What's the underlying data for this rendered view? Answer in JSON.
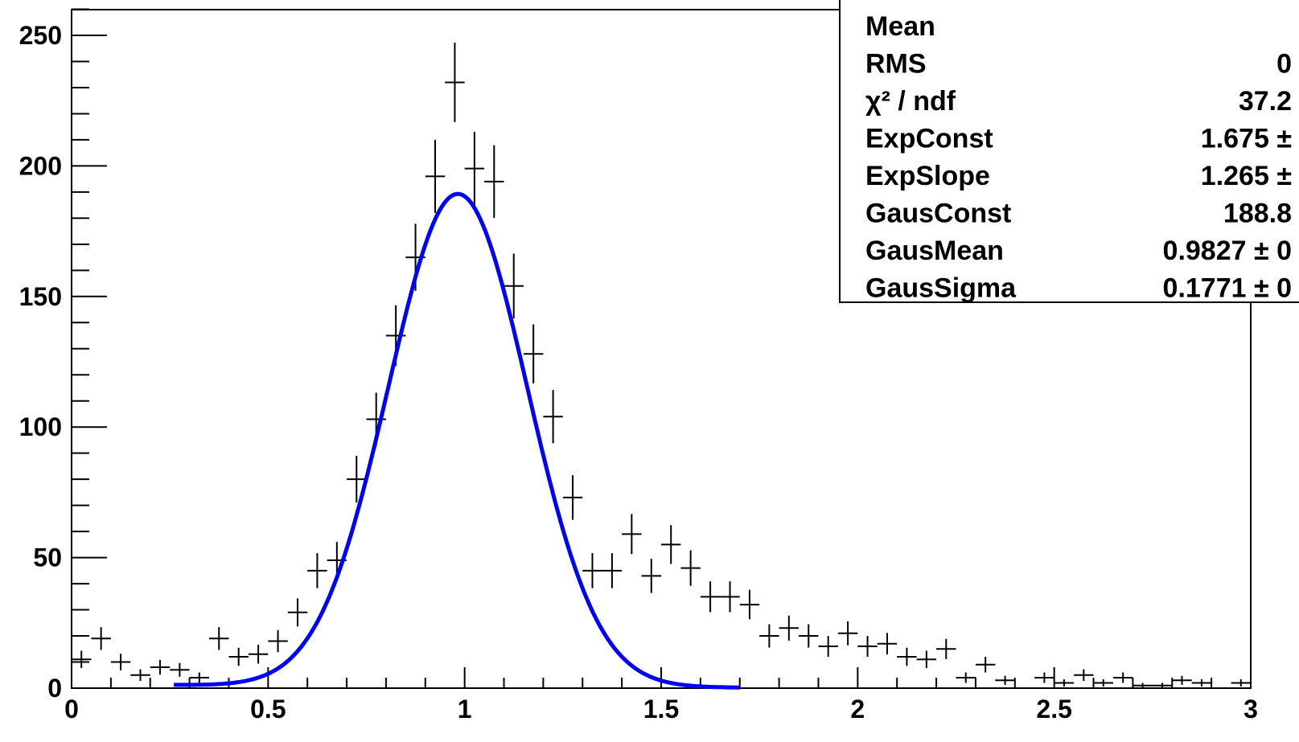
{
  "chart_data": {
    "type": "scatter",
    "title": "",
    "xlabel": "",
    "ylabel": "",
    "xlim": [
      0,
      3
    ],
    "ylim": [
      0,
      260
    ],
    "grid": false,
    "x_ticks": [
      {
        "value": 0,
        "label": "0"
      },
      {
        "value": 0.5,
        "label": "0.5"
      },
      {
        "value": 1,
        "label": "1"
      },
      {
        "value": 1.5,
        "label": "1.5"
      },
      {
        "value": 2,
        "label": "2"
      },
      {
        "value": 2.5,
        "label": "2.5"
      },
      {
        "value": 3,
        "label": "3"
      }
    ],
    "y_ticks": [
      {
        "value": 0,
        "label": "0"
      },
      {
        "value": 50,
        "label": "50"
      },
      {
        "value": 100,
        "label": "100"
      },
      {
        "value": 150,
        "label": "150"
      },
      {
        "value": 200,
        "label": "200"
      },
      {
        "value": 250,
        "label": "250"
      }
    ],
    "bin_width": 0.05,
    "series": [
      {
        "type": "histogram-errorbars",
        "color": "#000000",
        "x": [
          0.025,
          0.075,
          0.125,
          0.175,
          0.225,
          0.275,
          0.325,
          0.375,
          0.425,
          0.475,
          0.525,
          0.575,
          0.625,
          0.675,
          0.725,
          0.775,
          0.825,
          0.875,
          0.925,
          0.975,
          1.025,
          1.075,
          1.125,
          1.175,
          1.225,
          1.275,
          1.325,
          1.375,
          1.425,
          1.475,
          1.525,
          1.575,
          1.625,
          1.675,
          1.725,
          1.775,
          1.825,
          1.875,
          1.925,
          1.975,
          2.025,
          2.075,
          2.125,
          2.175,
          2.225,
          2.275,
          2.325,
          2.375,
          2.425,
          2.475,
          2.525,
          2.575,
          2.625,
          2.675,
          2.725,
          2.775,
          2.825,
          2.875,
          2.925,
          2.975
        ],
        "y": [
          11,
          19,
          10,
          5,
          8,
          7,
          4,
          19,
          12,
          13,
          18,
          29,
          45,
          49,
          80,
          103,
          135,
          165,
          196,
          232,
          199,
          194,
          154,
          128,
          104,
          73,
          45,
          45,
          59,
          43,
          55,
          46,
          35,
          35,
          32,
          20,
          23,
          20,
          16,
          21,
          16,
          17,
          12,
          11,
          15,
          4,
          9,
          3,
          0,
          4,
          2,
          5,
          2,
          4,
          1,
          1,
          3,
          2,
          0,
          2
        ]
      },
      {
        "type": "fit-function",
        "color": "#0000ff",
        "x_range": [
          0.26,
          1.7
        ],
        "formula": "ExpConst*exp(-ExpSlope*x)+GausConst*exp(-0.5*((x-GausMean)/GausSigma)^2)"
      }
    ],
    "stats_box": {
      "rows": [
        {
          "label": "Mean",
          "value": ""
        },
        {
          "label": "RMS",
          "value": "0"
        },
        {
          "label": "χ² / ndf",
          "value": "37.2"
        },
        {
          "label": "ExpConst",
          "value": "1.675 ±"
        },
        {
          "label": "ExpSlope",
          "value": "1.265 ±"
        },
        {
          "label": "GausConst",
          "value": "188.8"
        },
        {
          "label": "GausMean",
          "value": "0.9827 ± 0"
        },
        {
          "label": "GausSigma",
          "value": "0.1771 ± 0"
        }
      ]
    },
    "fit_params": {
      "ExpConst": 1.675,
      "ExpSlope": 1.265,
      "GausConst": 188.8,
      "GausMean": 0.9827,
      "GausSigma": 0.1771
    }
  }
}
